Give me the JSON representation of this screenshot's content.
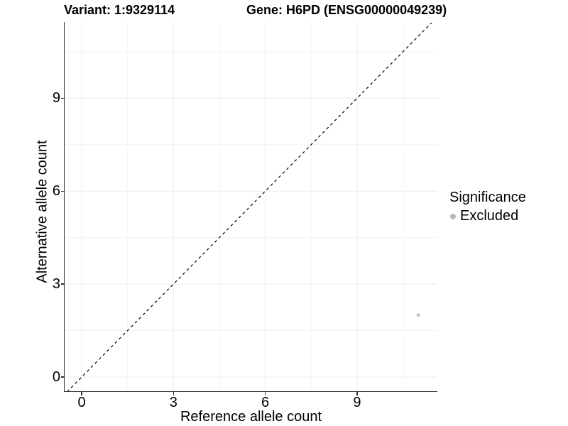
{
  "titles": {
    "variant": "Variant: 1:9329114",
    "gene": "Gene: H6PD (ENSG00000049239)"
  },
  "axes": {
    "x": {
      "label": "Reference allele count",
      "tick_labels": [
        "0",
        "3",
        "6",
        "9"
      ]
    },
    "y": {
      "label": "Alternative allele count",
      "tick_labels": [
        "0",
        "3",
        "6",
        "9"
      ]
    }
  },
  "legend": {
    "title": "Significance",
    "items": [
      {
        "label": "Excluded",
        "color": "#b9b9b9"
      }
    ]
  },
  "colors": {
    "background": "#ffffff",
    "text": "#000000",
    "axis_line": "#333333",
    "grid_major": "#ebebeb",
    "grid_minor": "#f4f4f4",
    "point": "#bdbdbd",
    "reference_line": "#000000"
  },
  "chart_data": {
    "type": "scatter",
    "title": "Variant: 1:9329114  /  Gene: H6PD (ENSG00000049239)",
    "xlabel": "Reference allele count",
    "ylabel": "Alternative allele count",
    "xlim": [
      -0.56,
      11.62
    ],
    "ylim": [
      -0.47,
      11.44
    ],
    "x_major_ticks": [
      0,
      3,
      6,
      9
    ],
    "y_major_ticks": [
      0,
      3,
      6,
      9
    ],
    "x_minor_gridlines": [
      1.5,
      4.5,
      7.5,
      10.5
    ],
    "y_minor_gridlines": [
      1.5,
      4.5,
      7.5,
      10.5
    ],
    "grid": true,
    "legend_position": "right",
    "series": [
      {
        "name": "Excluded",
        "color": "#bdbdbd",
        "points": [
          {
            "x": 11,
            "y": 2
          }
        ]
      }
    ],
    "reference_line": {
      "type": "abline",
      "intercept": 0,
      "slope": 1,
      "style": "dashed",
      "color": "#000000",
      "meaning": "y = x identity line"
    }
  }
}
